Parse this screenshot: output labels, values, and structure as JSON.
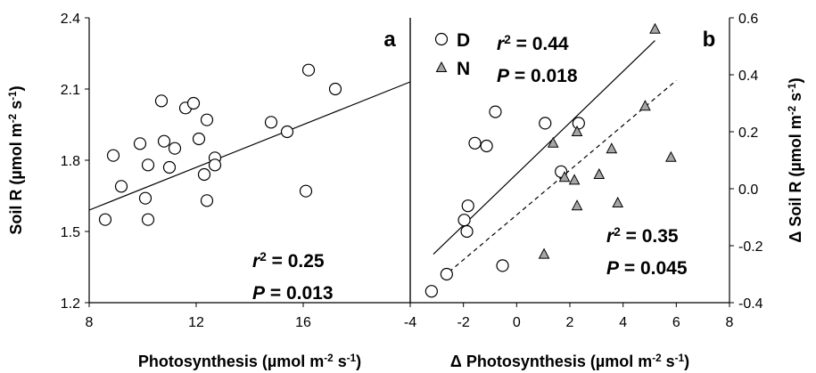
{
  "chart_data": [
    {
      "type": "scatter",
      "panel_label": "a",
      "x_label": [
        "Photosynthesis (µmol m",
        "-2",
        " s",
        "-1",
        ")"
      ],
      "y_label": [
        "Soil R (µmol m",
        "-2",
        " s",
        "-1",
        ")"
      ],
      "y_axis_side": "left",
      "xlim": [
        8,
        20
      ],
      "xticks": [
        8,
        12,
        16
      ],
      "ylim": [
        1.2,
        2.4
      ],
      "yticks": [
        1.2,
        1.5,
        1.8,
        2.1,
        2.4
      ],
      "series": [
        {
          "marker": "circle",
          "color": "#ffffff",
          "x": [
            8.6,
            8.9,
            9.2,
            9.9,
            10.1,
            10.2,
            10.2,
            10.7,
            10.8,
            11.0,
            11.2,
            11.6,
            11.9,
            12.1,
            12.3,
            12.4,
            12.4,
            12.7,
            12.7,
            14.8,
            15.4,
            16.1,
            16.2,
            17.2
          ],
          "values": [
            1.55,
            1.82,
            1.69,
            1.87,
            1.64,
            1.78,
            1.55,
            2.05,
            1.88,
            1.77,
            1.85,
            2.02,
            2.04,
            1.89,
            1.74,
            1.97,
            1.63,
            1.81,
            1.78,
            1.96,
            1.92,
            1.67,
            2.18,
            2.1
          ]
        }
      ],
      "fit_lines": [
        {
          "style": "solid",
          "x": [
            8,
            20
          ],
          "y": [
            1.59,
            2.13
          ]
        }
      ],
      "annotations": [
        [
          "r",
          "2",
          " = 0.25"
        ],
        [
          "P",
          " = 0.013"
        ]
      ]
    },
    {
      "type": "scatter",
      "panel_label": "b",
      "x_label": [
        "Δ Photosynthesis (µmol m",
        "-2",
        " s",
        "-1",
        ")"
      ],
      "y_label": [
        "Δ Soil R (µmol m",
        "-2",
        " s",
        "-1",
        ")"
      ],
      "y_axis_side": "right",
      "xlim": [
        -4,
        8
      ],
      "xticks": [
        -4,
        -2,
        0,
        2,
        4,
        6,
        8
      ],
      "ylim": [
        -0.4,
        0.6
      ],
      "yticks": [
        -0.4,
        -0.2,
        {
          "value": 0,
          "label": "0.0"
        },
        0.2,
        0.4,
        0.6
      ],
      "legend": "upper left",
      "series": [
        {
          "name": "D",
          "marker": "circle",
          "color": "#ffffff",
          "x": [
            -3.2,
            -2.63,
            -1.97,
            -1.83,
            -1.87,
            -1.57,
            -1.13,
            -0.8,
            -0.53,
            1.07,
            2.33,
            1.67
          ],
          "values": [
            -0.36,
            -0.3,
            -0.11,
            -0.06,
            -0.15,
            0.16,
            0.15,
            0.27,
            -0.27,
            0.23,
            0.23,
            0.06
          ]
        },
        {
          "name": "N",
          "marker": "triangle",
          "color": "#a6a6a6",
          "x": [
            1.37,
            2.27,
            1.8,
            2.17,
            2.27,
            1.03,
            3.57,
            3.1,
            3.8,
            4.83,
            5.8,
            5.2
          ],
          "values": [
            0.16,
            0.2,
            0.04,
            0.03,
            -0.06,
            -0.23,
            0.14,
            0.05,
            -0.05,
            0.29,
            0.11,
            0.56
          ]
        }
      ],
      "fit_lines": [
        {
          "style": "solid",
          "x": [
            -3.13,
            5.2
          ],
          "y": [
            -0.23,
            0.52
          ]
        },
        {
          "style": "dashed",
          "x": [
            -2.77,
            6.0
          ],
          "y": [
            -0.31,
            0.38
          ]
        }
      ],
      "annotations": [
        [
          "r",
          "2",
          " = 0.44"
        ],
        [
          "P",
          " = 0.018"
        ],
        [
          "r",
          "2",
          " = 0.35"
        ],
        [
          "P",
          " = 0.045"
        ]
      ]
    }
  ]
}
